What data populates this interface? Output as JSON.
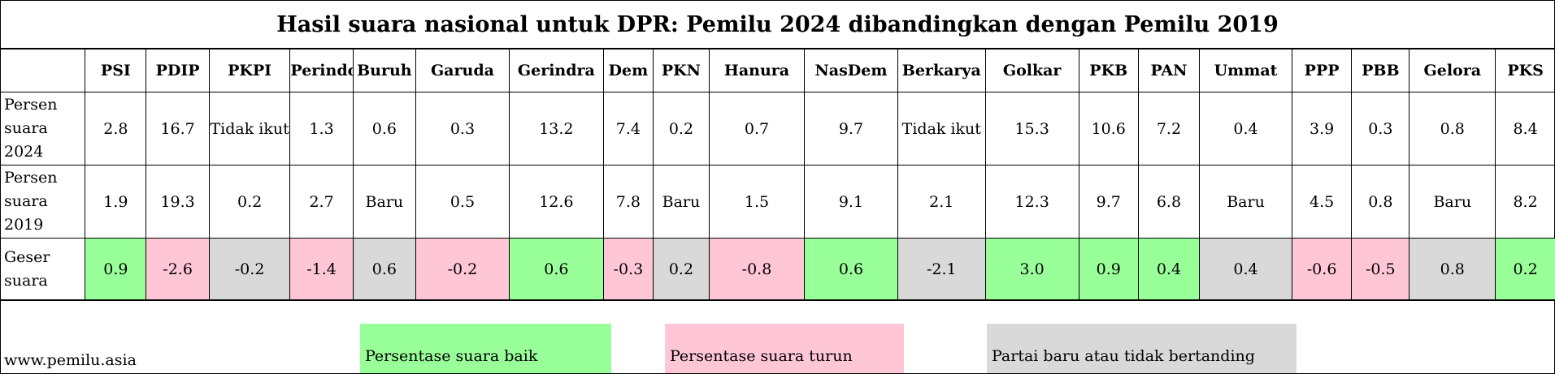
{
  "title": "Hasil suara nasional untuk DPR: Pemilu 2024 dibandingkan dengan Pemilu 2019",
  "parties": [
    "PSI",
    "PDIP",
    "PKPI",
    "Perindo",
    "Buruh",
    "Garuda",
    "Gerindra",
    "Dem",
    "PKN",
    "Hanura",
    "NasDem",
    "Berkarya",
    "Golkar",
    "PKB",
    "PAN",
    "Ummat",
    "PPP",
    "PBB",
    "Gelora",
    "PKS"
  ],
  "row_labels": {
    "r2024": "Persen suara 2024",
    "r2019": "Persen suara 2019",
    "shift": "Geser suara"
  },
  "values_2024": [
    "2.8",
    "16.7",
    "Tidak ikut",
    "1.3",
    "0.6",
    "0.3",
    "13.2",
    "7.4",
    "0.2",
    "0.7",
    "9.7",
    "Tidak ikut",
    "15.3",
    "10.6",
    "7.2",
    "0.4",
    "3.9",
    "0.3",
    "0.8",
    "8.4"
  ],
  "values_2019": [
    "1.9",
    "19.3",
    "0.2",
    "2.7",
    "Baru",
    "0.5",
    "12.6",
    "7.8",
    "Baru",
    "1.5",
    "9.1",
    "2.1",
    "12.3",
    "9.7",
    "6.8",
    "Baru",
    "4.5",
    "0.8",
    "Baru",
    "8.2"
  ],
  "shift_values": [
    "0.9",
    "-2.6",
    "-0.2",
    "-1.4",
    "0.6",
    "-0.2",
    "0.6",
    "-0.3",
    "0.2",
    "-0.8",
    "0.6",
    "-2.1",
    "3.0",
    "0.9",
    "0.4",
    "0.4",
    "-0.6",
    "-0.5",
    "0.8",
    "0.2"
  ],
  "shift_status": [
    "up",
    "down",
    "neutral",
    "down",
    "neutral",
    "down",
    "up",
    "down",
    "neutral",
    "down",
    "up",
    "neutral",
    "up",
    "up",
    "up",
    "neutral",
    "down",
    "down",
    "neutral",
    "up"
  ],
  "colors": {
    "up": "#99ff99",
    "down": "#ffc7d6",
    "neutral": "#d9d9d9"
  },
  "legend": {
    "up": "Persentase suara baik",
    "down": "Persentase suara turun",
    "neutral": "Partai baru atau tidak bertanding"
  },
  "source": "www.pemilu.asia"
}
